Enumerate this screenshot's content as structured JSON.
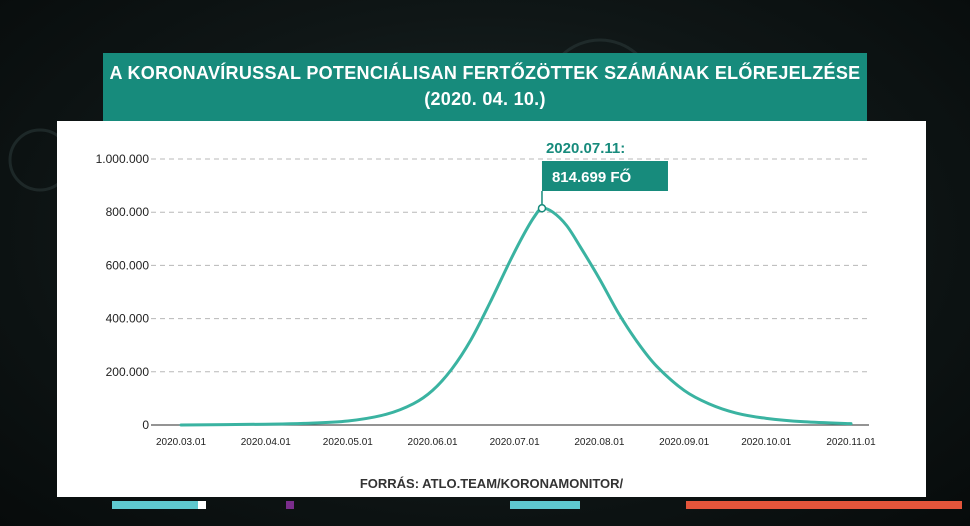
{
  "header": {
    "title_line1": "A KORONAVÍRUSSAL POTENCIÁLISAN FERTŐZÖTTEK SZÁMÁNAK ELŐREJELZÉSE",
    "title_line2": "(2020. 04. 10.)"
  },
  "source_text": "FORRÁS: ATLO.TEAM/KORONAMONITOR/",
  "colors": {
    "accent": "#178b7c",
    "line": "#3ab3a1",
    "grid": "#b8b8b8"
  },
  "chart_data": {
    "type": "line",
    "title": "A KORONAVÍRUSSAL POTENCIÁLISAN FERTŐZÖTTEK SZÁMÁNAK ELŐREJELZÉSE",
    "subtitle": "(2020. 04. 10.)",
    "xlabel": "",
    "ylabel": "",
    "ylim": [
      0,
      1000000
    ],
    "xlim": [
      "2020.03.01",
      "2020.11.01"
    ],
    "grid": true,
    "yticks": [
      {
        "value": 0,
        "label": "0"
      },
      {
        "value": 200000,
        "label": "200.000"
      },
      {
        "value": 400000,
        "label": "400.000"
      },
      {
        "value": 600000,
        "label": "600.000"
      },
      {
        "value": 800000,
        "label": "800.000"
      },
      {
        "value": 1000000,
        "label": "1.000.000"
      }
    ],
    "xticks": [
      "2020.03.01",
      "2020.04.01",
      "2020.05.01",
      "2020.06.01",
      "2020.07.01",
      "2020.08.01",
      "2020.09.01",
      "2020.10.01",
      "2020.11.01"
    ],
    "series": [
      {
        "x": [
          "2020.03.01",
          "2020.04.01",
          "2020.04.15",
          "2020.05.01",
          "2020.05.15",
          "2020.05.25",
          "2020.06.01",
          "2020.06.08",
          "2020.06.15",
          "2020.06.22",
          "2020.06.29",
          "2020.07.04",
          "2020.07.08",
          "2020.07.11",
          "2020.07.15",
          "2020.07.20",
          "2020.07.25",
          "2020.08.01",
          "2020.08.08",
          "2020.08.15",
          "2020.08.22",
          "2020.09.01",
          "2020.09.10",
          "2020.09.20",
          "2020.10.01",
          "2020.10.15",
          "2020.11.01"
        ],
        "values": [
          0,
          3000,
          6000,
          15000,
          40000,
          80000,
          130000,
          210000,
          320000,
          460000,
          610000,
          710000,
          780000,
          814699,
          800000,
          750000,
          670000,
          550000,
          420000,
          310000,
          220000,
          130000,
          80000,
          45000,
          25000,
          12000,
          5000
        ]
      }
    ],
    "annotation": {
      "x": "2020.07.11",
      "y": 814699,
      "date_label": "2020.07.11:",
      "value_label": "814.699 FŐ"
    }
  }
}
